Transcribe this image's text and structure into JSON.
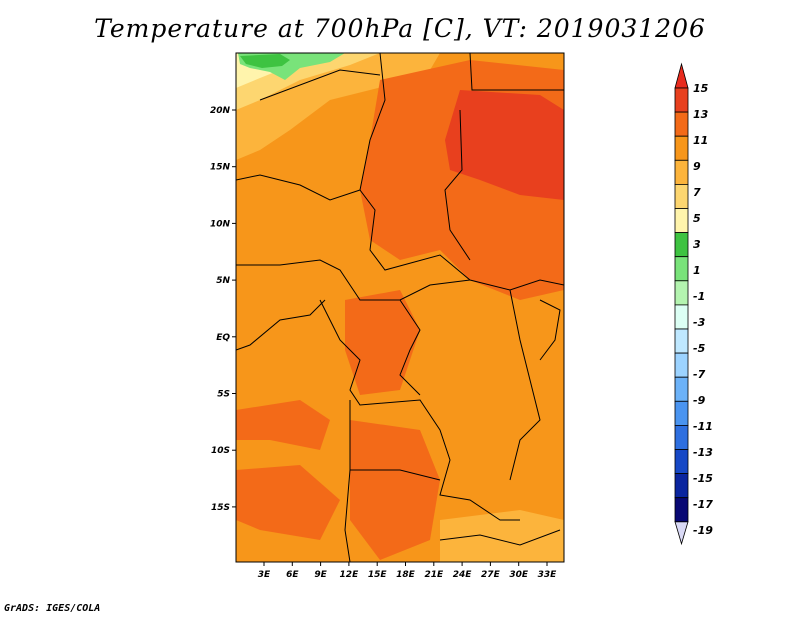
{
  "title": "Temperature at 700hPa [C], VT: 2019031206",
  "credit": "GrADS: IGES/COLA",
  "map": {
    "lat_labels": [
      "20N",
      "15N",
      "10N",
      "5N",
      "EQ",
      "5S",
      "10S",
      "15S"
    ],
    "lon_labels": [
      "3E",
      "6E",
      "9E",
      "12E",
      "15E",
      "18E",
      "21E",
      "24E",
      "27E",
      "30E",
      "33E"
    ]
  },
  "colorbar": {
    "labels": [
      "15",
      "13",
      "11",
      "9",
      "7",
      "5",
      "3",
      "1",
      "-1",
      "-3",
      "-5",
      "-7",
      "-9",
      "-11",
      "-13",
      "-15",
      "-17",
      "-19"
    ],
    "colors": [
      "#e8401e",
      "#f36a18",
      "#f7961a",
      "#fcb43c",
      "#fdd670",
      "#fff4ac",
      "#3ec341",
      "#79e37a",
      "#b4f4b0",
      "#dcfff4",
      "#bfe8ff",
      "#9cd3ff",
      "#6cb2f8",
      "#4a94f0",
      "#2e6fe0",
      "#1648c6",
      "#0a259f",
      "#080874"
    ],
    "top_color": "#e82b1e",
    "bottom_color": "#d9d9f5"
  }
}
